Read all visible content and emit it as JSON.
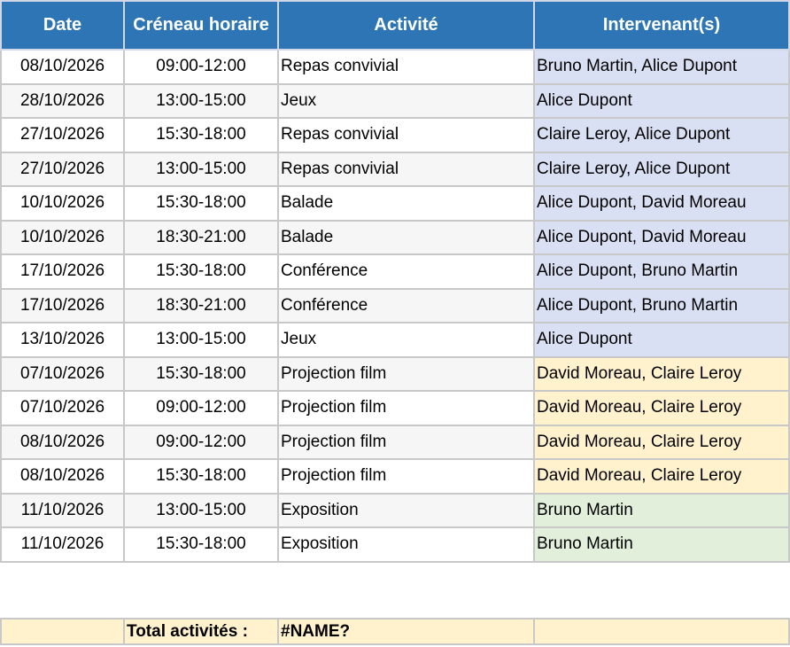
{
  "headers": [
    "Date",
    "Créneau horaire",
    "Activité",
    "Intervenant(s)"
  ],
  "colors": {
    "header": "#2e75b6",
    "blue": "#dae0f3",
    "yellow": "#fff2cc",
    "green": "#e2efda"
  },
  "rows": [
    {
      "date": "08/10/2026",
      "slot": "09:00-12:00",
      "activity": "Repas convivial",
      "staff": "Bruno Martin, Alice Dupont",
      "color": "blue"
    },
    {
      "date": "28/10/2026",
      "slot": "13:00-15:00",
      "activity": "Jeux",
      "staff": "Alice Dupont",
      "color": "blue"
    },
    {
      "date": "27/10/2026",
      "slot": "15:30-18:00",
      "activity": "Repas convivial",
      "staff": "Claire Leroy, Alice Dupont",
      "color": "blue"
    },
    {
      "date": "27/10/2026",
      "slot": "13:00-15:00",
      "activity": "Repas convivial",
      "staff": "Claire Leroy, Alice Dupont",
      "color": "blue"
    },
    {
      "date": "10/10/2026",
      "slot": "15:30-18:00",
      "activity": "Balade",
      "staff": "Alice Dupont, David Moreau",
      "color": "blue"
    },
    {
      "date": "10/10/2026",
      "slot": "18:30-21:00",
      "activity": "Balade",
      "staff": "Alice Dupont, David Moreau",
      "color": "blue"
    },
    {
      "date": "17/10/2026",
      "slot": "15:30-18:00",
      "activity": "Conférence",
      "staff": "Alice Dupont, Bruno Martin",
      "color": "blue"
    },
    {
      "date": "17/10/2026",
      "slot": "18:30-21:00",
      "activity": "Conférence",
      "staff": "Alice Dupont, Bruno Martin",
      "color": "blue"
    },
    {
      "date": "13/10/2026",
      "slot": "13:00-15:00",
      "activity": "Jeux",
      "staff": "Alice Dupont",
      "color": "blue"
    },
    {
      "date": "07/10/2026",
      "slot": "15:30-18:00",
      "activity": "Projection film",
      "staff": "David Moreau, Claire Leroy",
      "color": "yellow"
    },
    {
      "date": "07/10/2026",
      "slot": "09:00-12:00",
      "activity": "Projection film",
      "staff": "David Moreau, Claire Leroy",
      "color": "yellow"
    },
    {
      "date": "08/10/2026",
      "slot": "09:00-12:00",
      "activity": "Projection film",
      "staff": "David Moreau, Claire Leroy",
      "color": "yellow"
    },
    {
      "date": "08/10/2026",
      "slot": "15:30-18:00",
      "activity": "Projection film",
      "staff": "David Moreau, Claire Leroy",
      "color": "yellow"
    },
    {
      "date": "11/10/2026",
      "slot": "13:00-15:00",
      "activity": "Exposition",
      "staff": "Bruno Martin",
      "color": "green"
    },
    {
      "date": "11/10/2026",
      "slot": "15:30-18:00",
      "activity": "Exposition",
      "staff": "Bruno Martin",
      "color": "green"
    }
  ],
  "total": {
    "label": "Total activités :",
    "value": "#NAME?"
  }
}
